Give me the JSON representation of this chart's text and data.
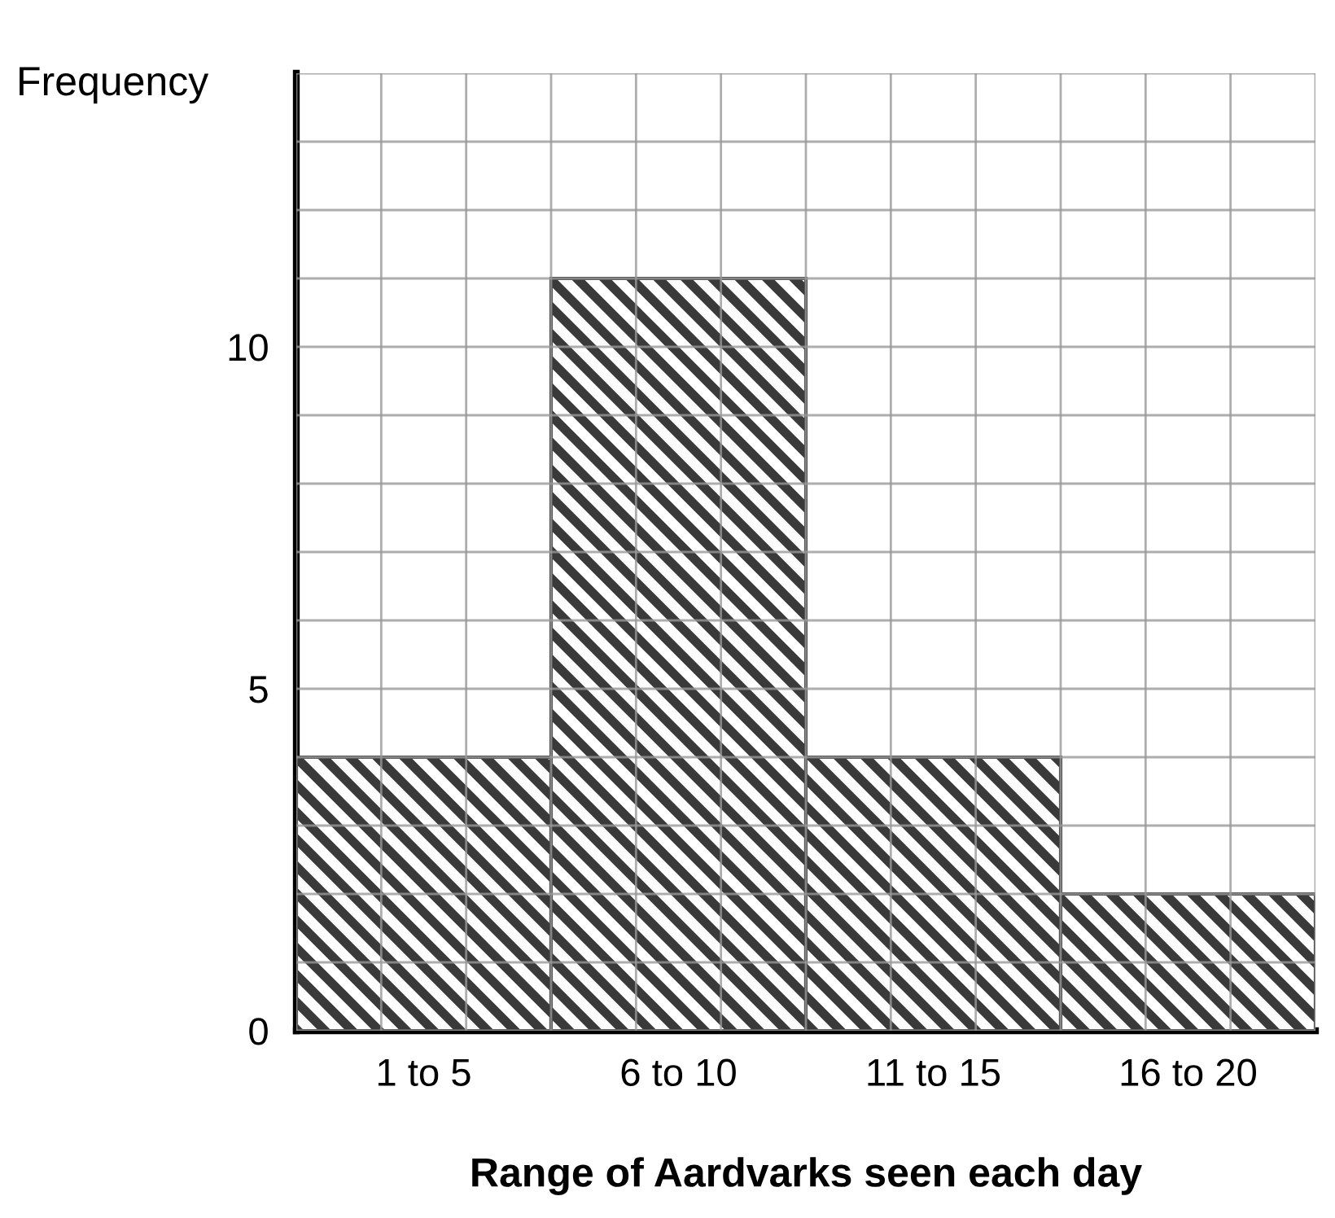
{
  "chart_data": {
    "type": "bar",
    "xlabel": "Range of Aardvarks seen each day",
    "ylabel": "Frequency",
    "categories": [
      "1 to 5",
      "6 to 10",
      "11 to 15",
      "16 to 20"
    ],
    "values": [
      4,
      11,
      4,
      2
    ],
    "color": "#3a3a3a",
    "ylim": [
      0,
      14
    ],
    "yticks": [
      0,
      {
        "value": 1,
        "label": null
      },
      {
        "value": 2,
        "label": null
      },
      {
        "value": 3,
        "label": null
      },
      {
        "value": 4,
        "label": null
      },
      5,
      {
        "value": 6,
        "label": null
      },
      {
        "value": 7,
        "label": null
      },
      {
        "value": 8,
        "label": null
      },
      {
        "value": 9,
        "label": null
      },
      10,
      {
        "value": 11,
        "label": null
      },
      {
        "value": 12,
        "label": null
      },
      {
        "value": 13,
        "label": null
      },
      {
        "value": 14,
        "label": null
      }
    ],
    "grid": true,
    "legend": false
  }
}
